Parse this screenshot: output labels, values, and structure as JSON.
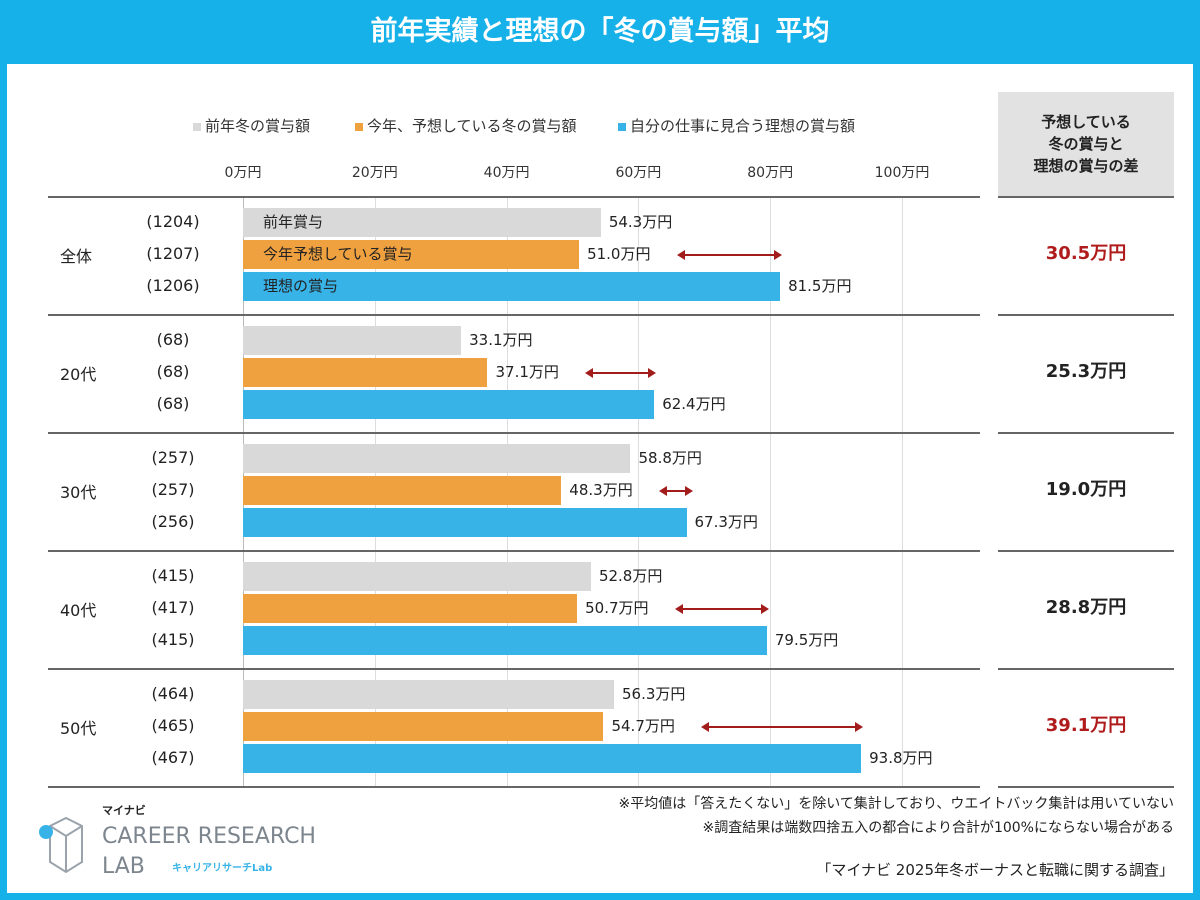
{
  "title": "前年実績と理想の「冬の賞与額」平均",
  "chart_data": {
    "type": "bar",
    "orientation": "horizontal",
    "title": "前年実績と理想の「冬の賞与額」平均",
    "xlim": [
      0,
      100
    ],
    "xticks": [
      "0万円",
      "20万円",
      "40万円",
      "60万円",
      "80万円",
      "100万円"
    ],
    "legend_position": "top",
    "categories": [
      "全体",
      "20代",
      "30代",
      "40代",
      "50代"
    ],
    "series": [
      {
        "name": "前年冬の賞与額",
        "inbar_label": "前年賞与",
        "color": "#d9d9d9",
        "values": [
          54.3,
          33.1,
          58.8,
          52.8,
          56.3
        ],
        "n": [
          "(1204)",
          "(68)",
          "(257)",
          "(415)",
          "(464)"
        ]
      },
      {
        "name": "今年、予想している冬の賞与額",
        "inbar_label": "今年予想している賞与",
        "color": "#f0a13f",
        "values": [
          51.0,
          37.1,
          48.3,
          50.7,
          54.7
        ],
        "n": [
          "(1207)",
          "(68)",
          "(257)",
          "(417)",
          "(465)"
        ]
      },
      {
        "name": "自分の仕事に見合う理想の賞与額",
        "inbar_label": "理想の賞与",
        "color": "#38b3e8",
        "values": [
          81.5,
          62.4,
          67.3,
          79.5,
          93.8
        ],
        "n": [
          "(1206)",
          "(68)",
          "(256)",
          "(415)",
          "(467)"
        ]
      }
    ],
    "value_suffix": "万円",
    "diff_header": [
      "予想している",
      "冬の賞与と",
      "理想の賞与の差"
    ],
    "diffs": [
      "30.5万円",
      "25.3万円",
      "19.0万円",
      "28.8万円",
      "39.1万円"
    ],
    "diff_highlight": [
      true,
      false,
      false,
      false,
      true
    ],
    "highlight_color": "#b01c1c"
  },
  "notes": [
    "※平均値は「答えたくない」を除いて集計しており、ウエイトバック集計は用いていない",
    "※調査結果は端数四捨五入の都合により合計が100%にならない場合がある"
  ],
  "source": "「マイナビ 2025年冬ボーナスと転職に関する調査」",
  "logo": {
    "brand": "マイナビ",
    "line1": "CAREER RESEARCH",
    "line2": "LAB",
    "kana": "キャリアリサーチLab"
  }
}
